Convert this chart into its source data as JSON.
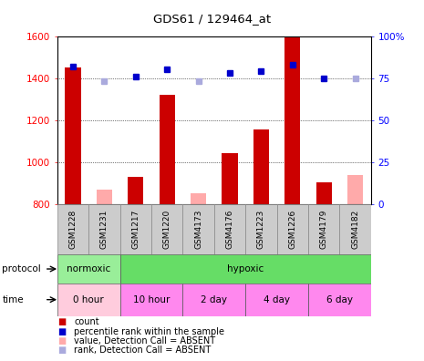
{
  "title": "GDS61 / 129464_at",
  "samples": [
    "GSM1228",
    "GSM1231",
    "GSM1217",
    "GSM1220",
    "GSM4173",
    "GSM4176",
    "GSM1223",
    "GSM1226",
    "GSM4179",
    "GSM4182"
  ],
  "count_values": [
    1450,
    null,
    930,
    1320,
    null,
    1040,
    1155,
    1600,
    905,
    null
  ],
  "count_absent": [
    null,
    870,
    null,
    null,
    850,
    null,
    null,
    null,
    null,
    940
  ],
  "rank_values": [
    82,
    null,
    76,
    80,
    null,
    78,
    79,
    83,
    75,
    null
  ],
  "rank_absent": [
    null,
    73,
    null,
    null,
    73,
    null,
    null,
    null,
    null,
    75
  ],
  "ylim_left": [
    800,
    1600
  ],
  "ylim_right": [
    0,
    100
  ],
  "yticks_left": [
    800,
    1000,
    1200,
    1400,
    1600
  ],
  "yticks_right": [
    0,
    25,
    50,
    75,
    100
  ],
  "bar_color": "#cc0000",
  "bar_absent_color": "#ffaaaa",
  "dot_color": "#0000cc",
  "dot_absent_color": "#aaaadd",
  "bg_color": "#ffffff",
  "sample_bg": "#cccccc",
  "proto_normoxic_color": "#99ee99",
  "proto_hypoxic_color": "#66dd66",
  "time_0h_color": "#ffccdd",
  "time_other_color": "#ff88ee",
  "legend_items": [
    {
      "color": "#cc0000",
      "label": "count"
    },
    {
      "color": "#0000cc",
      "label": "percentile rank within the sample"
    },
    {
      "color": "#ffaaaa",
      "label": "value, Detection Call = ABSENT"
    },
    {
      "color": "#aaaadd",
      "label": "rank, Detection Call = ABSENT"
    }
  ]
}
